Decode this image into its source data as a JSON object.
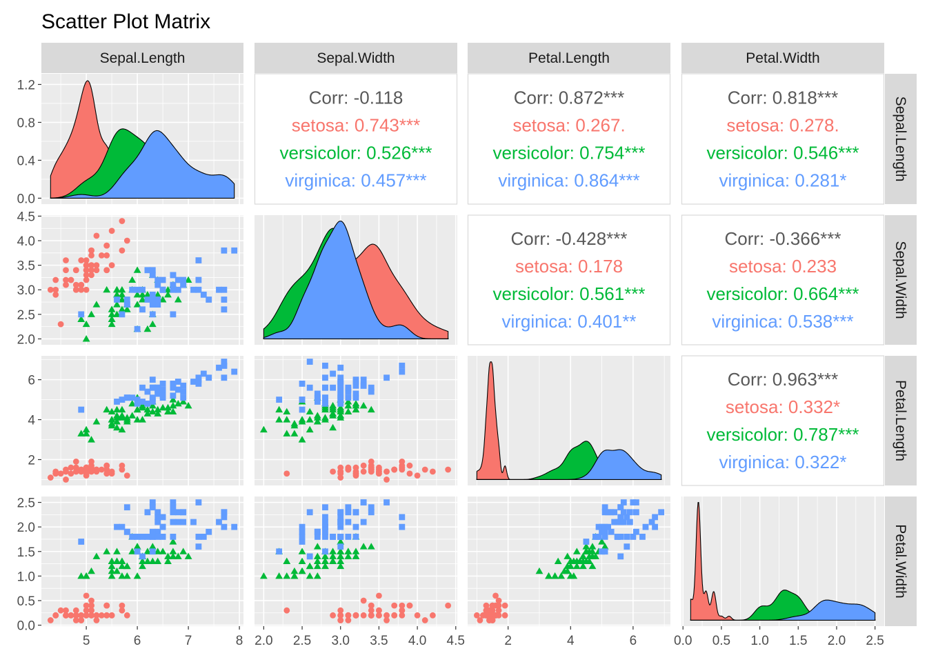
{
  "chart_data": {
    "type": "scatter",
    "title": "Scatter Plot Matrix",
    "variables": [
      "Sepal.Length",
      "Sepal.Width",
      "Petal.Length",
      "Petal.Width"
    ],
    "species": [
      {
        "name": "setosa",
        "color": "#F8766D",
        "shape": "circle"
      },
      {
        "name": "versicolor",
        "color": "#00BA38",
        "shape": "triangle"
      },
      {
        "name": "virginica",
        "color": "#619CFF",
        "shape": "square"
      }
    ],
    "overall_color": "#595959",
    "axes": [
      {
        "name": "Sepal.Length",
        "range": [
          4.3,
          7.9
        ],
        "ticks": [
          "5",
          "6",
          "7",
          "8"
        ],
        "density_ticks": [
          "0.0",
          "0.4",
          "0.8",
          "1.2"
        ],
        "density_ylim": [
          0,
          1.25
        ]
      },
      {
        "name": "Sepal.Width",
        "range": [
          2.0,
          4.4
        ],
        "ticks": [
          "2.0",
          "2.5",
          "3.0",
          "3.5",
          "4.0",
          "4.5"
        ]
      },
      {
        "name": "Petal.Length",
        "range": [
          1.0,
          6.9
        ],
        "ticks": [
          "2",
          "4",
          "6"
        ]
      },
      {
        "name": "Petal.Width",
        "range": [
          0.1,
          2.5
        ],
        "ticks": [
          "0.0",
          "0.5",
          "1.0",
          "1.5",
          "2.0",
          "2.5"
        ]
      }
    ],
    "correlations": [
      {
        "row": 0,
        "col": 1,
        "lines": [
          "Corr: -0.118",
          "setosa: 0.743***",
          "versicolor: 0.526***",
          "virginica: 0.457***"
        ]
      },
      {
        "row": 0,
        "col": 2,
        "lines": [
          "Corr: 0.872***",
          "setosa: 0.267.",
          "versicolor: 0.754***",
          "virginica: 0.864***"
        ]
      },
      {
        "row": 0,
        "col": 3,
        "lines": [
          "Corr: 0.818***",
          "setosa: 0.278.",
          "versicolor: 0.546***",
          "virginica: 0.281*"
        ]
      },
      {
        "row": 1,
        "col": 2,
        "lines": [
          "Corr: -0.428***",
          "setosa: 0.178",
          "versicolor: 0.561***",
          "virginica: 0.401**"
        ]
      },
      {
        "row": 1,
        "col": 3,
        "lines": [
          "Corr: -0.366***",
          "setosa: 0.233",
          "versicolor: 0.664***",
          "virginica: 0.538***"
        ]
      },
      {
        "row": 2,
        "col": 3,
        "lines": [
          "Corr: 0.963***",
          "setosa: 0.332*",
          "versicolor: 0.787***",
          "virginica: 0.322*"
        ]
      }
    ],
    "data": {
      "setosa": [
        [
          5.1,
          3.5,
          1.4,
          0.2
        ],
        [
          4.9,
          3.0,
          1.4,
          0.2
        ],
        [
          4.7,
          3.2,
          1.3,
          0.2
        ],
        [
          4.6,
          3.1,
          1.5,
          0.2
        ],
        [
          5.0,
          3.6,
          1.4,
          0.2
        ],
        [
          5.4,
          3.9,
          1.7,
          0.4
        ],
        [
          4.6,
          3.4,
          1.4,
          0.3
        ],
        [
          5.0,
          3.4,
          1.5,
          0.2
        ],
        [
          4.4,
          2.9,
          1.4,
          0.2
        ],
        [
          4.9,
          3.1,
          1.5,
          0.1
        ],
        [
          5.4,
          3.7,
          1.5,
          0.2
        ],
        [
          4.8,
          3.4,
          1.6,
          0.2
        ],
        [
          4.8,
          3.0,
          1.4,
          0.1
        ],
        [
          4.3,
          3.0,
          1.1,
          0.1
        ],
        [
          5.8,
          4.0,
          1.2,
          0.2
        ],
        [
          5.7,
          4.4,
          1.5,
          0.4
        ],
        [
          5.4,
          3.9,
          1.3,
          0.4
        ],
        [
          5.1,
          3.5,
          1.4,
          0.3
        ],
        [
          5.7,
          3.8,
          1.7,
          0.3
        ],
        [
          5.1,
          3.8,
          1.5,
          0.3
        ],
        [
          5.4,
          3.4,
          1.7,
          0.2
        ],
        [
          5.1,
          3.7,
          1.5,
          0.4
        ],
        [
          4.6,
          3.6,
          1.0,
          0.2
        ],
        [
          5.1,
          3.3,
          1.7,
          0.5
        ],
        [
          4.8,
          3.4,
          1.9,
          0.2
        ],
        [
          5.0,
          3.0,
          1.6,
          0.2
        ],
        [
          5.0,
          3.4,
          1.6,
          0.4
        ],
        [
          5.2,
          3.5,
          1.5,
          0.2
        ],
        [
          5.2,
          3.4,
          1.4,
          0.2
        ],
        [
          4.7,
          3.2,
          1.6,
          0.2
        ],
        [
          4.8,
          3.1,
          1.6,
          0.2
        ],
        [
          5.4,
          3.4,
          1.5,
          0.4
        ],
        [
          5.2,
          4.1,
          1.5,
          0.1
        ],
        [
          5.5,
          4.2,
          1.4,
          0.2
        ],
        [
          4.9,
          3.1,
          1.5,
          0.2
        ],
        [
          5.0,
          3.2,
          1.2,
          0.2
        ],
        [
          5.5,
          3.5,
          1.3,
          0.2
        ],
        [
          4.9,
          3.6,
          1.4,
          0.1
        ],
        [
          4.4,
          3.0,
          1.3,
          0.2
        ],
        [
          5.1,
          3.4,
          1.5,
          0.2
        ],
        [
          5.0,
          3.5,
          1.3,
          0.3
        ],
        [
          4.5,
          2.3,
          1.3,
          0.3
        ],
        [
          4.4,
          3.2,
          1.3,
          0.2
        ],
        [
          5.0,
          3.5,
          1.6,
          0.6
        ],
        [
          5.1,
          3.8,
          1.9,
          0.4
        ],
        [
          4.8,
          3.0,
          1.4,
          0.3
        ],
        [
          5.1,
          3.8,
          1.6,
          0.2
        ],
        [
          4.6,
          3.2,
          1.4,
          0.2
        ],
        [
          5.3,
          3.7,
          1.5,
          0.2
        ],
        [
          5.0,
          3.3,
          1.4,
          0.2
        ]
      ],
      "versicolor": [
        [
          7.0,
          3.2,
          4.7,
          1.4
        ],
        [
          6.4,
          3.2,
          4.5,
          1.5
        ],
        [
          6.9,
          3.1,
          4.9,
          1.5
        ],
        [
          5.5,
          2.3,
          4.0,
          1.3
        ],
        [
          6.5,
          2.8,
          4.6,
          1.5
        ],
        [
          5.7,
          2.8,
          4.5,
          1.3
        ],
        [
          6.3,
          3.3,
          4.7,
          1.6
        ],
        [
          4.9,
          2.4,
          3.3,
          1.0
        ],
        [
          6.6,
          2.9,
          4.6,
          1.3
        ],
        [
          5.2,
          2.7,
          3.9,
          1.4
        ],
        [
          5.0,
          2.0,
          3.5,
          1.0
        ],
        [
          5.9,
          3.0,
          4.2,
          1.5
        ],
        [
          6.0,
          2.2,
          4.0,
          1.0
        ],
        [
          6.1,
          2.9,
          4.7,
          1.4
        ],
        [
          5.6,
          2.9,
          3.6,
          1.3
        ],
        [
          6.7,
          3.1,
          4.4,
          1.4
        ],
        [
          5.6,
          3.0,
          4.5,
          1.5
        ],
        [
          5.8,
          2.7,
          4.1,
          1.0
        ],
        [
          6.2,
          2.2,
          4.5,
          1.5
        ],
        [
          5.6,
          2.5,
          3.9,
          1.1
        ],
        [
          5.9,
          3.2,
          4.8,
          1.8
        ],
        [
          6.1,
          2.8,
          4.0,
          1.3
        ],
        [
          6.3,
          2.5,
          4.9,
          1.5
        ],
        [
          6.1,
          2.8,
          4.7,
          1.2
        ],
        [
          6.4,
          2.9,
          4.3,
          1.3
        ],
        [
          6.6,
          3.0,
          4.4,
          1.4
        ],
        [
          6.8,
          2.8,
          4.8,
          1.4
        ],
        [
          6.7,
          3.0,
          5.0,
          1.7
        ],
        [
          6.0,
          2.9,
          4.5,
          1.5
        ],
        [
          5.7,
          2.6,
          3.5,
          1.0
        ],
        [
          5.5,
          2.4,
          3.8,
          1.1
        ],
        [
          5.5,
          2.4,
          3.7,
          1.0
        ],
        [
          5.8,
          2.7,
          3.9,
          1.2
        ],
        [
          6.0,
          2.7,
          5.1,
          1.6
        ],
        [
          5.4,
          3.0,
          4.5,
          1.5
        ],
        [
          6.0,
          3.4,
          4.5,
          1.6
        ],
        [
          6.7,
          3.1,
          4.7,
          1.5
        ],
        [
          6.3,
          2.3,
          4.4,
          1.3
        ],
        [
          5.6,
          3.0,
          4.1,
          1.3
        ],
        [
          5.5,
          2.5,
          4.0,
          1.3
        ],
        [
          5.5,
          2.6,
          4.4,
          1.2
        ],
        [
          6.1,
          3.0,
          4.6,
          1.4
        ],
        [
          5.8,
          2.6,
          4.0,
          1.2
        ],
        [
          5.0,
          2.3,
          3.3,
          1.0
        ],
        [
          5.6,
          2.7,
          4.2,
          1.3
        ],
        [
          5.7,
          3.0,
          4.2,
          1.2
        ],
        [
          5.7,
          2.9,
          4.2,
          1.3
        ],
        [
          6.2,
          2.9,
          4.3,
          1.3
        ],
        [
          5.1,
          2.5,
          3.0,
          1.1
        ],
        [
          5.7,
          2.8,
          4.1,
          1.3
        ]
      ],
      "virginica": [
        [
          6.3,
          3.3,
          6.0,
          2.5
        ],
        [
          5.8,
          2.7,
          5.1,
          1.9
        ],
        [
          7.1,
          3.0,
          5.9,
          2.1
        ],
        [
          6.3,
          2.9,
          5.6,
          1.8
        ],
        [
          6.5,
          3.0,
          5.8,
          2.2
        ],
        [
          7.6,
          3.0,
          6.6,
          2.1
        ],
        [
          4.9,
          2.5,
          4.5,
          1.7
        ],
        [
          7.3,
          2.9,
          6.3,
          1.8
        ],
        [
          6.7,
          2.5,
          5.8,
          1.8
        ],
        [
          7.2,
          3.6,
          6.1,
          2.5
        ],
        [
          6.5,
          3.2,
          5.1,
          2.0
        ],
        [
          6.4,
          2.7,
          5.3,
          1.9
        ],
        [
          6.8,
          3.0,
          5.5,
          2.1
        ],
        [
          5.7,
          2.5,
          5.0,
          2.0
        ],
        [
          5.8,
          2.8,
          5.1,
          2.4
        ],
        [
          6.4,
          3.2,
          5.3,
          2.3
        ],
        [
          6.5,
          3.0,
          5.5,
          1.8
        ],
        [
          7.7,
          3.8,
          6.7,
          2.2
        ],
        [
          7.7,
          2.6,
          6.9,
          2.3
        ],
        [
          6.0,
          2.2,
          5.0,
          1.5
        ],
        [
          6.9,
          3.2,
          5.7,
          2.3
        ],
        [
          5.6,
          2.8,
          4.9,
          2.0
        ],
        [
          7.7,
          2.8,
          6.7,
          2.0
        ],
        [
          6.3,
          2.7,
          4.9,
          1.8
        ],
        [
          6.7,
          3.3,
          5.7,
          2.1
        ],
        [
          7.2,
          3.2,
          6.0,
          1.8
        ],
        [
          6.2,
          2.8,
          4.8,
          1.8
        ],
        [
          6.1,
          3.0,
          4.9,
          1.8
        ],
        [
          6.4,
          2.8,
          5.6,
          2.1
        ],
        [
          7.2,
          3.0,
          5.8,
          1.6
        ],
        [
          7.4,
          2.8,
          6.1,
          1.9
        ],
        [
          7.9,
          3.8,
          6.4,
          2.0
        ],
        [
          6.4,
          2.8,
          5.6,
          2.2
        ],
        [
          6.3,
          2.8,
          5.1,
          1.5
        ],
        [
          6.1,
          2.6,
          5.6,
          1.4
        ],
        [
          7.7,
          3.0,
          6.1,
          2.3
        ],
        [
          6.3,
          3.4,
          5.6,
          2.4
        ],
        [
          6.4,
          3.1,
          5.5,
          1.8
        ],
        [
          6.0,
          3.0,
          4.8,
          1.8
        ],
        [
          6.9,
          3.1,
          5.4,
          2.1
        ],
        [
          6.7,
          3.1,
          5.6,
          2.4
        ],
        [
          6.9,
          3.1,
          5.1,
          2.3
        ],
        [
          5.8,
          2.7,
          5.1,
          1.9
        ],
        [
          6.8,
          3.2,
          5.9,
          2.3
        ],
        [
          6.7,
          3.3,
          5.7,
          2.5
        ],
        [
          6.7,
          3.0,
          5.2,
          2.3
        ],
        [
          6.3,
          2.5,
          5.0,
          1.9
        ],
        [
          6.5,
          3.0,
          5.2,
          2.0
        ],
        [
          6.2,
          3.4,
          5.4,
          2.3
        ],
        [
          5.9,
          3.0,
          5.1,
          1.8
        ]
      ]
    }
  }
}
